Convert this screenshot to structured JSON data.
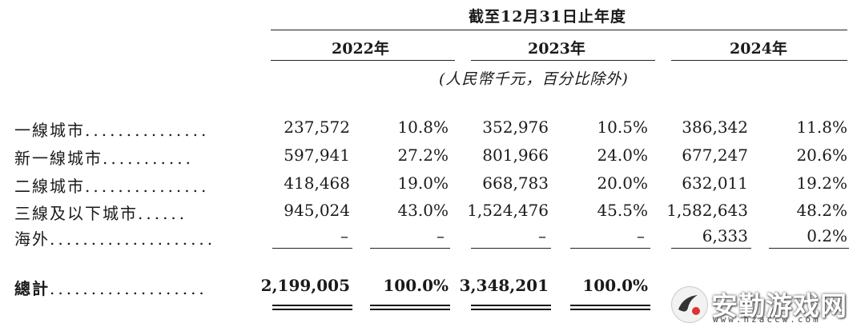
{
  "header": {
    "period": "截至12月31日止年度",
    "years": [
      "2022年",
      "2023年",
      "2024年"
    ],
    "unit_note": "(人民幣千元，百分比除外)"
  },
  "rows": [
    {
      "label": "一線城市",
      "dots": "...............",
      "v2022": "237,572",
      "p2022": "10.8%",
      "v2023": "352,976",
      "p2023": "10.5%",
      "v2024": "386,342",
      "p2024": "11.8%"
    },
    {
      "label": "新一線城市",
      "dots": "...........",
      "v2022": "597,941",
      "p2022": "27.2%",
      "v2023": "801,966",
      "p2023": "24.0%",
      "v2024": "677,247",
      "p2024": "20.6%"
    },
    {
      "label": "二線城市",
      "dots": "...............",
      "v2022": "418,468",
      "p2022": "19.0%",
      "v2023": "668,783",
      "p2023": "20.0%",
      "v2024": "632,011",
      "p2024": "19.2%"
    },
    {
      "label": "三線及以下城市",
      "dots": "......",
      "v2022": "945,024",
      "p2022": "43.0%",
      "v2023": "1,524,476",
      "p2023": "45.5%",
      "v2024": "1,582,643",
      "p2024": "48.2%"
    },
    {
      "label": "海外",
      "dots": "....................",
      "v2022": "–",
      "p2022": "–",
      "v2023": "–",
      "p2023": "–",
      "v2024": "6,333",
      "p2024": "0.2%"
    }
  ],
  "total": {
    "label": "總計",
    "dots": "...................",
    "v2022": "2,199,005",
    "p2022": "100.0%",
    "v2023": "3,348,201",
    "p2023": "100.0%"
  },
  "watermark": {
    "text": "安勤游戏网",
    "url": "www.hzaccw.com"
  }
}
